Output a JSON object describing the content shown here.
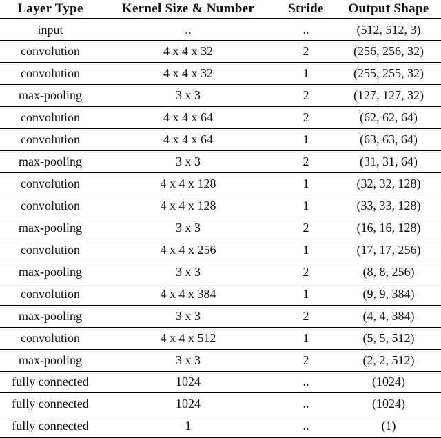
{
  "table": {
    "columns": [
      "Layer Type",
      "Kernel Size & Number",
      "Stride",
      "Output Shape"
    ],
    "rows": [
      [
        "input",
        "..",
        "..",
        "(512, 512, 3)"
      ],
      [
        "convolution",
        "4 x 4 x 32",
        "2",
        "(256, 256, 32)"
      ],
      [
        "convolution",
        "4 x 4 x 32",
        "1",
        "(255, 255, 32)"
      ],
      [
        "max-pooling",
        "3 x 3",
        "2",
        "(127, 127, 32)"
      ],
      [
        "convolution",
        "4 x 4 x 64",
        "2",
        "(62, 62, 64)"
      ],
      [
        "convolution",
        "4 x 4 x 64",
        "1",
        "(63, 63, 64)"
      ],
      [
        "max-pooling",
        "3 x 3",
        "2",
        "(31, 31, 64)"
      ],
      [
        "convolution",
        "4 x 4 x 128",
        "1",
        "(32, 32, 128)"
      ],
      [
        "convolution",
        "4 x 4 x 128",
        "1",
        "(33, 33, 128)"
      ],
      [
        "max-pooling",
        "3 x 3",
        "2",
        "(16, 16, 128)"
      ],
      [
        "convolution",
        "4 x 4 x 256",
        "1",
        "(17, 17, 256)"
      ],
      [
        "max-pooling",
        "3 x 3",
        "2",
        "(8, 8, 256)"
      ],
      [
        "convolution",
        "4 x 4 x 384",
        "1",
        "(9, 9, 384)"
      ],
      [
        "max-pooling",
        "3 x 3",
        "2",
        "(4, 4, 384)"
      ],
      [
        "convolution",
        "4 x 4 x 512",
        "1",
        "(5, 5, 512)"
      ],
      [
        "max-pooling",
        "3 x 3",
        "2",
        "(2, 2, 512)"
      ],
      [
        "fully connected",
        "1024",
        "..",
        "(1024)"
      ],
      [
        "fully connected",
        "1024",
        "..",
        "(1024)"
      ],
      [
        "fully connected",
        "1",
        "..",
        "(1)"
      ]
    ],
    "colors": {
      "text": "#111111",
      "rule": "#000000",
      "background": "#ffffff"
    }
  }
}
